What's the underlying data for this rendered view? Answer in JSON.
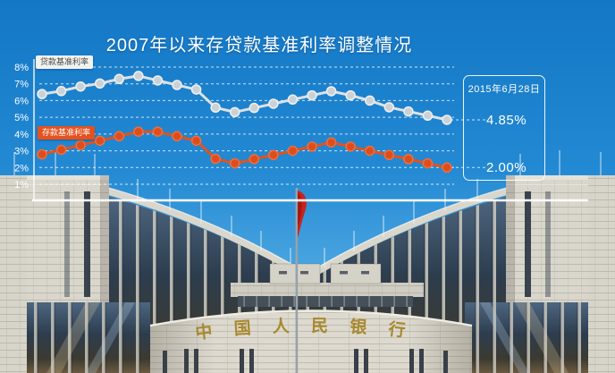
{
  "page": {
    "title": "2007年以来存贷款基准利率调整情况"
  },
  "chart_data": {
    "type": "line",
    "title": "2007年以来存贷款基准利率调整情况",
    "xlabel": "",
    "ylabel": "",
    "ylim": [
      1,
      8
    ],
    "yticks": [
      "8%",
      "7%",
      "6%",
      "5%",
      "4%",
      "3%",
      "2%",
      "1%"
    ],
    "grid": "horizontal-dashed",
    "legend_position": "callout-labels-on-lines",
    "series": [
      {
        "name": "贷款基准利率",
        "color": "#dde1e3",
        "marker": "#cbd2d6",
        "marker_ring": "#eef0f1",
        "values": [
          6.39,
          6.57,
          6.84,
          7.02,
          7.29,
          7.47,
          7.2,
          6.93,
          6.66,
          5.58,
          5.31,
          5.56,
          5.81,
          6.06,
          6.31,
          6.56,
          6.31,
          6.0,
          5.6,
          5.35,
          5.1,
          4.85
        ]
      },
      {
        "name": "存款基准利率",
        "color": "#e2521d",
        "marker": "#de4e1c",
        "marker_ring": "#ef6e3e",
        "values": [
          2.79,
          3.06,
          3.33,
          3.6,
          3.87,
          4.14,
          4.14,
          3.87,
          3.6,
          2.52,
          2.25,
          2.5,
          2.75,
          3.0,
          3.25,
          3.5,
          3.25,
          3.0,
          2.75,
          2.5,
          2.25,
          2.0
        ]
      }
    ],
    "annotation": {
      "date": "2015年6月28日",
      "loan_value": "4.85%",
      "deposit_value": "2.00%"
    }
  },
  "building_sign_text": "中国人民银行",
  "colors": {
    "sky_top": "#1377c5",
    "sky_bottom": "#7fc2ec",
    "accent_orange": "#e2521d",
    "line_gray": "#dde1e3",
    "stone": "#d9d6cc",
    "sign_gold": "#a8892f",
    "flag_red": "#c8231c"
  }
}
